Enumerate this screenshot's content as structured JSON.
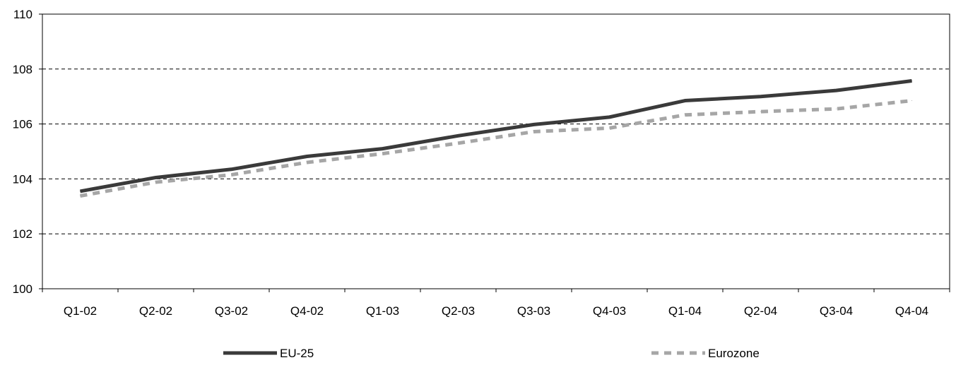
{
  "chart_data": {
    "type": "line",
    "title": "",
    "xlabel": "",
    "ylabel": "",
    "categories": [
      "Q1-02",
      "Q2-02",
      "Q3-02",
      "Q4-02",
      "Q1-03",
      "Q2-03",
      "Q3-03",
      "Q4-03",
      "Q1-04",
      "Q2-04",
      "Q3-04",
      "Q4-04"
    ],
    "ylim": [
      100,
      110
    ],
    "yticks": [
      "100",
      "102",
      "104",
      "106",
      "108",
      "110"
    ],
    "grid": "horizontal dashed",
    "legend_position": "bottom",
    "series": [
      {
        "name": "EU-25",
        "color": "#3a3a3a",
        "style": "solid",
        "values": [
          103.55,
          104.05,
          104.35,
          104.82,
          105.1,
          105.57,
          105.98,
          106.25,
          106.85,
          107.0,
          107.22,
          107.57
        ]
      },
      {
        "name": "Eurozone",
        "color": "#a6a6a6",
        "style": "dashed",
        "values": [
          103.38,
          103.88,
          104.15,
          104.6,
          104.92,
          105.3,
          105.72,
          105.85,
          106.33,
          106.45,
          106.55,
          106.85
        ]
      }
    ]
  }
}
